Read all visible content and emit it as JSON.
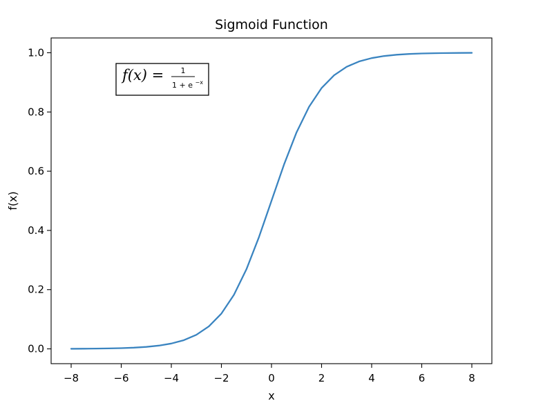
{
  "chart_data": {
    "type": "line",
    "title": "Sigmoid Function",
    "xlabel": "x",
    "ylabel": "f(x)",
    "xlim": [
      -8.8,
      8.8
    ],
    "ylim": [
      -0.05,
      1.05
    ],
    "xticks": [
      -8,
      -6,
      -4,
      -2,
      0,
      2,
      4,
      6,
      8
    ],
    "xtick_labels": [
      "−8",
      "−6",
      "−4",
      "−2",
      "0",
      "2",
      "4",
      "6",
      "8"
    ],
    "yticks": [
      0.0,
      0.2,
      0.4,
      0.6,
      0.8,
      1.0
    ],
    "ytick_labels": [
      "0.0",
      "0.2",
      "0.4",
      "0.6",
      "0.8",
      "1.0"
    ],
    "grid": false,
    "series": [
      {
        "color": "#3a84c0",
        "x": [
          -8,
          -7.5,
          -7,
          -6.5,
          -6,
          -5.5,
          -5,
          -4.5,
          -4,
          -3.5,
          -3,
          -2.5,
          -2,
          -1.5,
          -1,
          -0.5,
          0,
          0.5,
          1,
          1.5,
          2,
          2.5,
          3,
          3.5,
          4,
          4.5,
          5,
          5.5,
          6,
          6.5,
          7,
          7.5,
          8
        ],
        "y": [
          0.0003,
          0.0006,
          0.0009,
          0.0015,
          0.0025,
          0.0041,
          0.0067,
          0.011,
          0.018,
          0.0293,
          0.0474,
          0.0759,
          0.1192,
          0.1824,
          0.2689,
          0.3775,
          0.5,
          0.6225,
          0.7311,
          0.8176,
          0.8808,
          0.9241,
          0.9526,
          0.9707,
          0.982,
          0.989,
          0.9933,
          0.9959,
          0.9975,
          0.9985,
          0.9991,
          0.9994,
          0.9997
        ]
      }
    ],
    "annotation": {
      "lhs": "f(x) =",
      "numerator": "1",
      "denominator_base": "1 + e",
      "denominator_exponent": "−x"
    }
  }
}
